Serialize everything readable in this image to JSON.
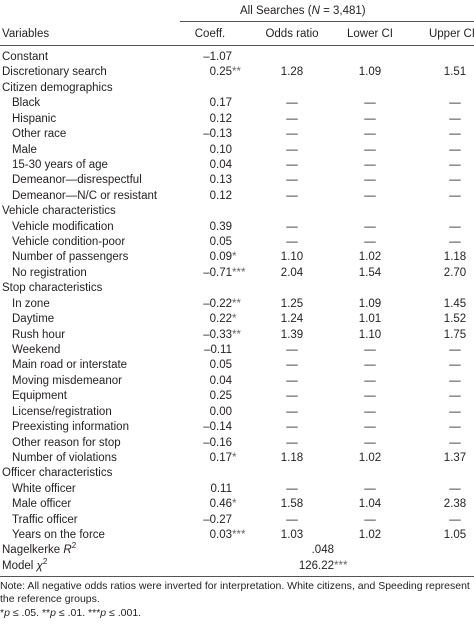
{
  "header": {
    "title_pre": "All Searches (",
    "title_var": "N",
    "title_post": " = 3,481)"
  },
  "table": {
    "columns": [
      "Variables",
      "Coeff.",
      "Odds ratio",
      "Lower CI",
      "Upper CI"
    ],
    "top_rows": [
      {
        "label": "Constant",
        "coeff": "–1.07"
      },
      {
        "label": "Discretionary search",
        "coeff": "0.25",
        "sig": "**",
        "odds": "1.28",
        "lower": "1.09",
        "upper": "1.51"
      }
    ],
    "groups": [
      {
        "title": "Citizen demographics",
        "rows": [
          {
            "label": "Black",
            "coeff": "0.17",
            "odds": "—",
            "lower": "—",
            "upper": "—"
          },
          {
            "label": "Hispanic",
            "coeff": "0.12",
            "odds": "—",
            "lower": "—",
            "upper": "—"
          },
          {
            "label": "Other race",
            "coeff": "–0.13",
            "odds": "—",
            "lower": "—",
            "upper": "—"
          },
          {
            "label": "Male",
            "coeff": "0.10",
            "odds": "—",
            "lower": "—",
            "upper": "—"
          },
          {
            "label": "15-30 years of age",
            "coeff": "0.04",
            "odds": "—",
            "lower": "—",
            "upper": "—"
          },
          {
            "label": "Demeanor—disrespectful",
            "coeff": "0.13",
            "odds": "—",
            "lower": "—",
            "upper": "—"
          },
          {
            "label": "Demeanor—N/C or resistant",
            "coeff": "0.12",
            "odds": "—",
            "lower": "—",
            "upper": "—"
          }
        ]
      },
      {
        "title": "Vehicle characteristics",
        "rows": [
          {
            "label": "Vehicle modification",
            "coeff": "0.39",
            "odds": "—",
            "lower": "—",
            "upper": "—"
          },
          {
            "label": "Vehicle condition-poor",
            "coeff": "0.05",
            "odds": "—",
            "lower": "—",
            "upper": "—"
          },
          {
            "label": "Number of passengers",
            "coeff": "0.09",
            "sig": "*",
            "odds": "1.10",
            "lower": "1.02",
            "upper": "1.18"
          },
          {
            "label": "No registration",
            "coeff": "–0.71",
            "sig": "***",
            "odds": "2.04",
            "lower": "1.54",
            "upper": "2.70"
          }
        ]
      },
      {
        "title": "Stop characteristics",
        "rows": [
          {
            "label": "In zone",
            "coeff": "–0.22",
            "sig": "**",
            "odds": "1.25",
            "lower": "1.09",
            "upper": "1.45"
          },
          {
            "label": "Daytime",
            "coeff": "0.22",
            "sig": "*",
            "odds": "1.24",
            "lower": "1.01",
            "upper": "1.52"
          },
          {
            "label": "Rush hour",
            "coeff": "–0.33",
            "sig": "**",
            "odds": "1.39",
            "lower": "1.10",
            "upper": "1.75"
          },
          {
            "label": "Weekend",
            "coeff": "–0.11",
            "odds": "—",
            "lower": "—",
            "upper": "—"
          },
          {
            "label": "Main road or interstate",
            "coeff": "0.05",
            "odds": "—",
            "lower": "—",
            "upper": "—"
          },
          {
            "label": "Moving misdemeanor",
            "coeff": "0.04",
            "odds": "—",
            "lower": "—",
            "upper": "—"
          },
          {
            "label": "Equipment",
            "coeff": "0.25",
            "odds": "—",
            "lower": "—",
            "upper": "—"
          },
          {
            "label": "License/registration",
            "coeff": "0.00",
            "odds": "—",
            "lower": "—",
            "upper": "—"
          },
          {
            "label": "Preexisting information",
            "coeff": "–0.14",
            "odds": "—",
            "lower": "—",
            "upper": "—"
          },
          {
            "label": "Other reason for stop",
            "coeff": "–0.16",
            "odds": "—",
            "lower": "—",
            "upper": "—"
          },
          {
            "label": "Number of violations",
            "coeff": "0.17",
            "sig": "*",
            "odds": "1.18",
            "lower": "1.02",
            "upper": "1.37"
          }
        ]
      },
      {
        "title": "Officer characteristics",
        "rows": [
          {
            "label": "White officer",
            "coeff": "0.11",
            "odds": "—",
            "lower": "—",
            "upper": "—"
          },
          {
            "label": "Male officer",
            "coeff": "0.46",
            "sig": "*",
            "odds": "1.58",
            "lower": "1.04",
            "upper": "2.38"
          },
          {
            "label": "Traffic officer",
            "coeff": "–0.27",
            "odds": "—",
            "lower": "—",
            "upper": "—"
          },
          {
            "label": "Years on the force",
            "coeff": "0.03",
            "sig": "***",
            "odds": "1.03",
            "lower": "1.02",
            "upper": "1.05"
          }
        ]
      }
    ],
    "fit": [
      {
        "label": "Nagelkerke ",
        "var": "R",
        "sup": "2",
        "value": ".048"
      },
      {
        "label": "Model ",
        "var": "χ",
        "sup": "2",
        "value": "126.22",
        "sig": "***"
      }
    ]
  },
  "note": {
    "text": "Note: All negative odds ratios were inverted for interpretation. White citizens, and Speeding represent the reference groups.",
    "sig_notes": [
      {
        "stars": "*",
        "var": "p",
        "text": " ≤ .05. "
      },
      {
        "stars": "**",
        "var": "p",
        "text": " ≤ .01. "
      },
      {
        "stars": "***",
        "var": "p",
        "text": " ≤ .001."
      }
    ]
  }
}
